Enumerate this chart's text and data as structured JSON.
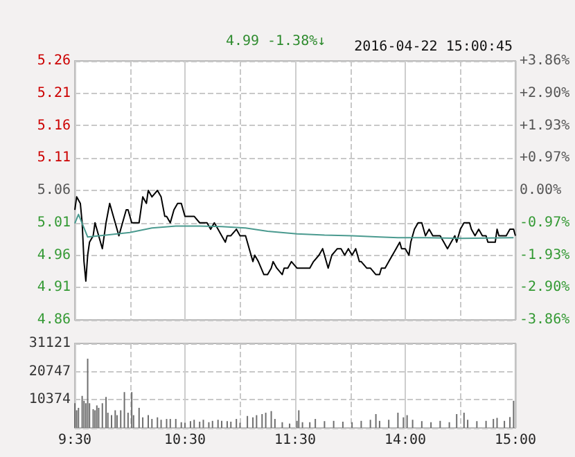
{
  "chart_data": [
    {
      "type": "line",
      "title": "2016-04-22 15:00:45",
      "annotations": [
        "4.99",
        "-1.38%↓"
      ],
      "categories": [
        null,
        null,
        null,
        null,
        null,
        null,
        null,
        null,
        null,
        null,
        null,
        null,
        null,
        null,
        null,
        null,
        null,
        null,
        null,
        null,
        null,
        null,
        null,
        null,
        null,
        null,
        null,
        null,
        null,
        null,
        null,
        null,
        null,
        null,
        null,
        null,
        null,
        null,
        null,
        null,
        null,
        null,
        null,
        null,
        null,
        null,
        null,
        null,
        null,
        null,
        null,
        null,
        null,
        null,
        null,
        null,
        null,
        null,
        null,
        null,
        null,
        null,
        null,
        null,
        null,
        null,
        null,
        null,
        null,
        null,
        null,
        null,
        null,
        null,
        null,
        null,
        null,
        null,
        null,
        null,
        null,
        null,
        null,
        null,
        null,
        null,
        null,
        null,
        null,
        null,
        null,
        null,
        null,
        null,
        null,
        null,
        null,
        null,
        null,
        null,
        null,
        null,
        null,
        null,
        null,
        null,
        null,
        null,
        null,
        null,
        null,
        null,
        null,
        null,
        null,
        null,
        null,
        null,
        null,
        null,
        null,
        null,
        null,
        null,
        null,
        null,
        null,
        null,
        null,
        null,
        null,
        null,
        null,
        null,
        null,
        null,
        null,
        null,
        null,
        null,
        null,
        null,
        null,
        null,
        null,
        null,
        null,
        null,
        null,
        null,
        null,
        null,
        null,
        null,
        null,
        null,
        null,
        null,
        null,
        null,
        null,
        null,
        null,
        null,
        null,
        null,
        null,
        null,
        null,
        null,
        null,
        null,
        null,
        null,
        null,
        null,
        null,
        null,
        null,
        null,
        null,
        null,
        null,
        null,
        null,
        null,
        null,
        null,
        null,
        null,
        null,
        null,
        null,
        null,
        null,
        null,
        null,
        null,
        null,
        null,
        null,
        null,
        null,
        null,
        null,
        null,
        null,
        null,
        null,
        null,
        null,
        null,
        null,
        null,
        null,
        null,
        null,
        null,
        null,
        null,
        null,
        null,
        null,
        null,
        null,
        null,
        null,
        null,
        null,
        null,
        null,
        null,
        null,
        null,
        null,
        null,
        null,
        null,
        null,
        null,
        null
      ],
      "series": [
        {
          "color": "#000000",
          "values": [
            5.03,
            5.05,
            null,
            5.04,
            5.01,
            4.95,
            4.92,
            4.96,
            4.98,
            null,
            4.99,
            5.01,
            null,
            4.99,
            null,
            4.97,
            null,
            5.01,
            null,
            5.04,
            null,
            5.02,
            5.01,
            null,
            4.99,
            null,
            5.01,
            null,
            5.03,
            5.03,
            null,
            5.01,
            null,
            5.01,
            null,
            5.01,
            null,
            5.05,
            null,
            5.04,
            5.06,
            null,
            5.05,
            null,
            null,
            5.06,
            null,
            5.05,
            null,
            5.02,
            5.02,
            null,
            5.01,
            null,
            5.03,
            null,
            5.04,
            null,
            5.04,
            null,
            5.02,
            null,
            null,
            5.02,
            null,
            5.02,
            null,
            null,
            5.01,
            null,
            5.01,
            null,
            5.01,
            null,
            5.0,
            null,
            5.01,
            null,
            5.0,
            null,
            4.99,
            null,
            4.98,
            4.99,
            null,
            4.99,
            null,
            null,
            5.0,
            null,
            4.99,
            null,
            null,
            4.99,
            null,
            4.97,
            null,
            4.95,
            4.96,
            null,
            4.95,
            null,
            null,
            4.93,
            null,
            4.93,
            null,
            4.94,
            4.95,
            null,
            4.94,
            null,
            null,
            4.93,
            4.94,
            null,
            4.94,
            null,
            4.95,
            null,
            null,
            4.94,
            null,
            4.94,
            4.94,
            null,
            4.94,
            null,
            4.94,
            null,
            4.95,
            null,
            null,
            4.96,
            null,
            4.97,
            4.96,
            null,
            4.94,
            null,
            4.96,
            null,
            null,
            4.97,
            null,
            4.97,
            null,
            4.96,
            null,
            4.97,
            null,
            4.96,
            null,
            4.97,
            null,
            4.95,
            4.95,
            null,
            null,
            4.94,
            null,
            4.94,
            null,
            null,
            4.93,
            null,
            4.93,
            4.94,
            null,
            4.94,
            null,
            4.95,
            null,
            4.96,
            null,
            4.97,
            null,
            4.98,
            4.97,
            null,
            4.97,
            null,
            4.96,
            4.98,
            null,
            5.0,
            null,
            5.01,
            null,
            5.01,
            null,
            4.99,
            null,
            5.0,
            null,
            4.99,
            null,
            4.99,
            null,
            4.99,
            null,
            4.98,
            null,
            4.97,
            null,
            4.98,
            null,
            4.99,
            4.98,
            null,
            5.0,
            null,
            5.01,
            null,
            null,
            5.01,
            5.0,
            null,
            4.99,
            null,
            5.0,
            null,
            4.99,
            null,
            4.99,
            4.98,
            null,
            4.98,
            null,
            4.98,
            5.0,
            4.99,
            null,
            null,
            4.99,
            4.99,
            null,
            5.0,
            null,
            5.0,
            4.99
          ]
        },
        {
          "color": "#4a9a8f",
          "values": [
            5.009,
            null,
            5.023,
            null,
            null,
            5.002,
            null,
            4.988,
            null,
            null,
            null,
            null,
            null,
            null,
            null,
            null,
            null,
            4.991,
            null,
            null,
            null,
            null,
            null,
            null,
            null,
            null,
            null,
            null,
            null,
            null,
            4.995,
            null,
            null,
            null,
            null,
            null,
            null,
            null,
            null,
            null,
            null,
            null,
            5.002,
            null,
            null,
            null,
            null,
            null,
            null,
            null,
            null,
            null,
            null,
            null,
            null,
            5.005,
            null,
            null,
            null,
            null,
            null,
            null,
            null,
            null,
            null,
            null,
            null,
            null,
            5.005,
            null,
            null,
            null,
            null,
            null,
            null,
            null,
            null,
            null,
            null,
            null,
            5.004,
            null,
            null,
            null,
            null,
            null,
            null,
            null,
            null,
            null,
            null,
            null,
            null,
            5.002,
            null,
            null,
            null,
            null,
            null,
            null,
            null,
            null,
            null,
            null,
            null,
            4.997,
            null,
            null,
            null,
            null,
            null,
            null,
            null,
            null,
            null,
            null,
            null,
            null,
            null,
            null,
            null,
            4.993,
            null,
            null,
            null,
            null,
            null,
            null,
            null,
            null,
            null,
            null,
            null,
            null,
            null,
            null,
            4.991,
            null,
            null,
            null,
            null,
            null,
            null,
            null,
            null,
            null,
            null,
            null,
            null,
            null,
            null,
            4.99,
            null,
            null,
            null,
            null,
            null,
            null,
            null,
            null,
            null,
            null,
            null,
            null,
            null,
            null,
            4.988,
            null,
            null,
            null,
            null,
            null,
            null,
            null,
            null,
            null,
            4.987,
            null,
            null,
            null,
            null,
            null,
            null,
            null,
            null,
            null,
            null,
            null,
            null,
            null,
            null,
            4.987,
            null,
            null,
            null,
            null,
            null,
            null,
            null,
            null,
            null,
            null,
            null,
            null,
            null,
            null,
            null,
            null,
            null,
            null,
            null,
            4.986,
            null,
            null,
            null,
            null,
            null,
            null,
            null,
            null,
            null,
            null,
            null,
            null,
            null,
            null,
            null,
            null,
            null,
            null,
            null,
            null,
            null,
            null,
            null,
            null,
            null,
            null,
            null,
            4.987,
            null
          ]
        }
      ],
      "ylim": [
        4.86,
        5.26
      ],
      "yticks": [
        4.86,
        4.91,
        4.96,
        5.01,
        5.06,
        5.11,
        5.16,
        5.21,
        5.26
      ],
      "y2lim": [
        -3.86,
        3.86
      ],
      "y2ticks": [
        {
          "value": -3.86,
          "label": "-3.86%"
        },
        {
          "value": -2.9,
          "label": "-2.90%"
        },
        {
          "value": -1.93,
          "label": "-1.93%"
        },
        {
          "value": -0.97,
          "label": "-0.97%"
        },
        {
          "value": 0,
          "label": "0.00%"
        },
        {
          "value": 0.97,
          "label": "+0.97%"
        },
        {
          "value": 1.93,
          "label": "+1.93%"
        },
        {
          "value": 2.9,
          "label": "+2.90%"
        },
        {
          "value": 3.86,
          "label": "+3.86%"
        }
      ],
      "grid": true,
      "tick_labels": "y"
    },
    {
      "type": "bar",
      "color": "#6e6e6e",
      "categories": [
        "9:30",
        null,
        null,
        null,
        null,
        null,
        null,
        null,
        null,
        null,
        null,
        null,
        null,
        null,
        null,
        null,
        null,
        null,
        null,
        null,
        null,
        null,
        null,
        null,
        null,
        null,
        null,
        null,
        null,
        null,
        null,
        null,
        null,
        null,
        null,
        null,
        null,
        null,
        null,
        null,
        null,
        null,
        null,
        null,
        null,
        null,
        null,
        null,
        null,
        null,
        null,
        null,
        null,
        null,
        null,
        null,
        null,
        null,
        null,
        null,
        "10:30",
        null,
        null,
        null,
        null,
        null,
        null,
        null,
        null,
        null,
        null,
        null,
        null,
        null,
        null,
        null,
        null,
        null,
        null,
        null,
        null,
        null,
        null,
        null,
        null,
        null,
        null,
        null,
        null,
        null,
        null,
        null,
        null,
        null,
        null,
        null,
        null,
        null,
        null,
        null,
        null,
        null,
        null,
        null,
        null,
        null,
        null,
        null,
        null,
        null,
        null,
        null,
        null,
        null,
        null,
        null,
        null,
        null,
        null,
        null,
        "11:30",
        null,
        null,
        null,
        null,
        null,
        null,
        null,
        null,
        null,
        null,
        null,
        null,
        null,
        null,
        null,
        null,
        null,
        null,
        null,
        null,
        null,
        null,
        null,
        null,
        null,
        null,
        null,
        null,
        null,
        null,
        null,
        null,
        null,
        null,
        null,
        null,
        null,
        null,
        null,
        null,
        null,
        null,
        null,
        null,
        null,
        null,
        null,
        null,
        null,
        null,
        null,
        null,
        null,
        null,
        null,
        null,
        null,
        null,
        null,
        "14:00",
        null,
        null,
        null,
        null,
        null,
        null,
        null,
        null,
        null,
        null,
        null,
        null,
        null,
        null,
        null,
        null,
        null,
        null,
        null,
        null,
        null,
        null,
        null,
        null,
        null,
        null,
        null,
        null,
        null,
        null,
        null,
        null,
        null,
        null,
        null,
        null,
        null,
        null,
        null,
        null,
        null,
        null,
        null,
        null,
        null,
        null,
        null,
        null,
        null,
        null,
        null,
        null,
        null,
        null,
        null,
        null,
        null,
        null,
        null,
        "15:00"
      ],
      "values": [
        9100,
        6500,
        7400,
        null,
        11800,
        10000,
        9100,
        25500,
        9100,
        null,
        6900,
        6500,
        8300,
        7400,
        null,
        9100,
        null,
        11400,
        5600,
        null,
        4700,
        null,
        6500,
        4700,
        null,
        6500,
        null,
        13200,
        null,
        5600,
        null,
        13200,
        4700,
        null,
        null,
        7400,
        null,
        3900,
        null,
        null,
        4700,
        null,
        3300,
        null,
        null,
        3900,
        null,
        3000,
        null,
        null,
        3300,
        null,
        3300,
        null,
        null,
        3300,
        null,
        null,
        2100,
        null,
        1900,
        null,
        null,
        2500,
        null,
        3000,
        null,
        null,
        2300,
        null,
        3000,
        null,
        null,
        2100,
        null,
        2600,
        null,
        null,
        3000,
        null,
        2600,
        null,
        null,
        2500,
        null,
        2300,
        null,
        null,
        3300,
        null,
        1900,
        null,
        null,
        null,
        4400,
        null,
        null,
        3900,
        null,
        4700,
        null,
        null,
        5100,
        null,
        5600,
        null,
        null,
        6200,
        null,
        3300,
        null,
        null,
        null,
        2100,
        null,
        null,
        null,
        1600,
        null,
        null,
        null,
        2600,
        6500,
        null,
        2100,
        null,
        null,
        null,
        2100,
        null,
        null,
        3300,
        null,
        null,
        null,
        null,
        2500,
        null,
        null,
        null,
        null,
        2600,
        null,
        null,
        null,
        null,
        2300,
        null,
        null,
        null,
        null,
        2100,
        null,
        null,
        null,
        null,
        2600,
        null,
        null,
        null,
        null,
        3000,
        null,
        null,
        5100,
        null,
        2600,
        null,
        null,
        null,
        null,
        3000,
        null,
        null,
        null,
        null,
        5600,
        null,
        null,
        3900,
        null,
        4700,
        null,
        null,
        3000,
        null,
        null,
        null,
        null,
        2500,
        null,
        null,
        null,
        null,
        2100,
        null,
        null,
        null,
        null,
        2600,
        null,
        null,
        null,
        null,
        2100,
        null,
        null,
        null,
        5100,
        null,
        null,
        null,
        5600,
        null,
        3000,
        null,
        null,
        null,
        null,
        2500,
        null,
        null,
        null,
        null,
        2600,
        null,
        null,
        null,
        3300,
        null,
        3700,
        null,
        null,
        null,
        2600,
        null,
        null,
        4000,
        null,
        10000,
        null
      ],
      "ylim": [
        0,
        31121
      ],
      "yticks": [
        {
          "value": 0,
          "label": null
        },
        10374,
        20747,
        31121
      ],
      "grid": true
    }
  ]
}
